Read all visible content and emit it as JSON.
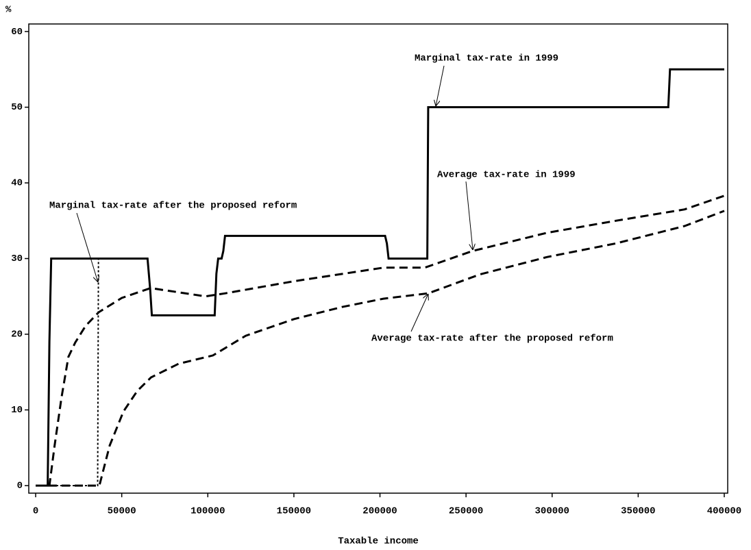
{
  "chart_data": {
    "type": "line",
    "y_label": "%",
    "x_label": "Taxable income",
    "xlim": [
      -4000,
      402000
    ],
    "ylim": [
      -1,
      61
    ],
    "xticks": [
      0,
      50000,
      100000,
      150000,
      200000,
      250000,
      300000,
      350000,
      400000
    ],
    "yticks": [
      0,
      10,
      20,
      30,
      40,
      50,
      60
    ],
    "series": [
      {
        "name": "Marginal tax-rate in 1999",
        "color": "#000000",
        "style": "solid",
        "x": [
          0,
          7000,
          8000,
          9000,
          65000,
          66500,
          67500,
          104000,
          105000,
          106000,
          108000,
          109000,
          110000,
          203000,
          204000,
          205000,
          227500,
          228000,
          367500,
          368500,
          400000
        ],
        "values": [
          0,
          0,
          19,
          30,
          30,
          26,
          22.5,
          22.5,
          28,
          30,
          30,
          31,
          33,
          33,
          32,
          30,
          30,
          50,
          50,
          55,
          55
        ]
      },
      {
        "name": "Marginal tax-rate after the proposed reform",
        "color": "#000000",
        "style": "dotted",
        "x": [
          0,
          36000,
          36500
        ],
        "values": [
          0,
          0,
          30
        ]
      },
      {
        "name": "Average tax-rate in 1999",
        "color": "#000000",
        "style": "dashed",
        "x": [
          0,
          8000,
          11000,
          15000,
          19000,
          23000,
          29000,
          36600,
          50000,
          66800,
          98600,
          110000,
          150000,
          202000,
          226000,
          253700,
          297000,
          337000,
          377000,
          400000
        ],
        "values": [
          0,
          0,
          5.3,
          11.6,
          17,
          18.9,
          21.1,
          22.9,
          24.8,
          26.1,
          25,
          25.4,
          27,
          28.8,
          28.8,
          31,
          33.4,
          35,
          36.5,
          38.3
        ]
      },
      {
        "name": "Average tax-rate after the proposed reform",
        "color": "#000000",
        "style": "dashed",
        "x": [
          0,
          37000,
          43000,
          51000,
          59000,
          67000,
          83000,
          103000,
          122000,
          150000,
          178000,
          202000,
          228000,
          258000,
          297000,
          337000,
          377000,
          400000
        ],
        "values": [
          0,
          0,
          5.3,
          9.8,
          12.5,
          14.3,
          16.1,
          17.2,
          19.8,
          22,
          23.6,
          24.7,
          25.4,
          27.9,
          30.2,
          32,
          34.3,
          36.3
        ]
      }
    ]
  }
}
